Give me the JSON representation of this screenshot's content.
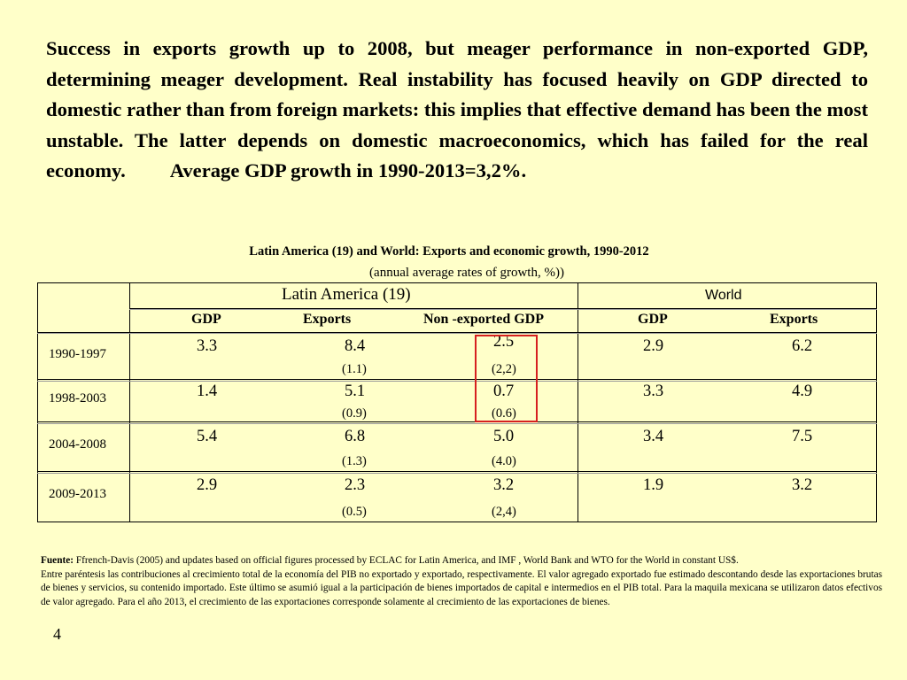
{
  "intro": {
    "text_main": "Success in exports growth up to 2008, but meager performance in non-exported GDP, determining meager  development. Real instability has focused heavily on GDP directed to domestic rather than from foreign markets: this implies that effective demand has been the most unstable. The latter depends on domestic macroeconomics, which has failed for the real economy.",
    "text_tail": "Average GDP growth in 1990-2013=3,2%."
  },
  "table": {
    "title": "Latin  America (19) and World: Exports and economic growth, 1990-2012",
    "subtitle": "(annual average rates of growth, %))",
    "group_headers": {
      "latin_america": "Latin America (19)",
      "world": "World"
    },
    "sub_headers": {
      "la_gdp": "GDP",
      "la_exports": "Exports",
      "la_non_exported_gdp": "Non -exported GDP",
      "world_gdp": "GDP",
      "world_exports": "Exports"
    },
    "rows": [
      {
        "period": "1990-1997",
        "la_gdp": "3.3",
        "la_exports": "8.4",
        "la_exports_contrib": "(1.1)",
        "la_non_exported_gdp": "2.5",
        "la_non_exported_contrib": "(2,2)",
        "world_gdp": "2.9",
        "world_exports": "6.2"
      },
      {
        "period": "1998-2003",
        "la_gdp": "1.4",
        "la_exports": "5.1",
        "la_exports_contrib": "(0.9)",
        "la_non_exported_gdp": "0.7",
        "la_non_exported_contrib": "(0.6)",
        "world_gdp": "3.3",
        "world_exports": "4.9"
      },
      {
        "period": "2004-2008",
        "la_gdp": "5.4",
        "la_exports": "6.8",
        "la_exports_contrib": "(1.3)",
        "la_non_exported_gdp": "5.0",
        "la_non_exported_contrib": "(4.0)",
        "world_gdp": "3.4",
        "world_exports": "7.5"
      },
      {
        "period": "2009-2013",
        "la_gdp": "2.9",
        "la_exports": "2.3",
        "la_exports_contrib": "(0.5)",
        "la_non_exported_gdp": "3.2",
        "la_non_exported_contrib": "(2,4)",
        "world_gdp": "1.9",
        "world_exports": "3.2"
      }
    ]
  },
  "footer": {
    "source_label": "Fuente:",
    "source_text": "Ffrench-Davis  (2005)  and  updates based on official figures  processed by ECLAC for Latin America, and  IMF , World Bank and WTO for the World in constant US$.",
    "note": "Entre paréntesis las contribuciones al crecimiento total de la economía del PIB no exportado y exportado, respectivamente. El valor agregado exportado fue estimado descontando desde las exportaciones brutas de bienes y servicios, su contenido importado. Este último se asumió igual a la participación de bienes importados de capital e intermedios en el PIB total. Para la maquila mexicana se utilizaron datos efectivos de valor agregado. Para el año 2013, el crecimiento de las exportaciones corresponde solamente al crecimiento de las exportaciones de bienes."
  },
  "page_number": "4",
  "colors": {
    "background": "#ffffc9",
    "highlight_box": "#d62020"
  }
}
